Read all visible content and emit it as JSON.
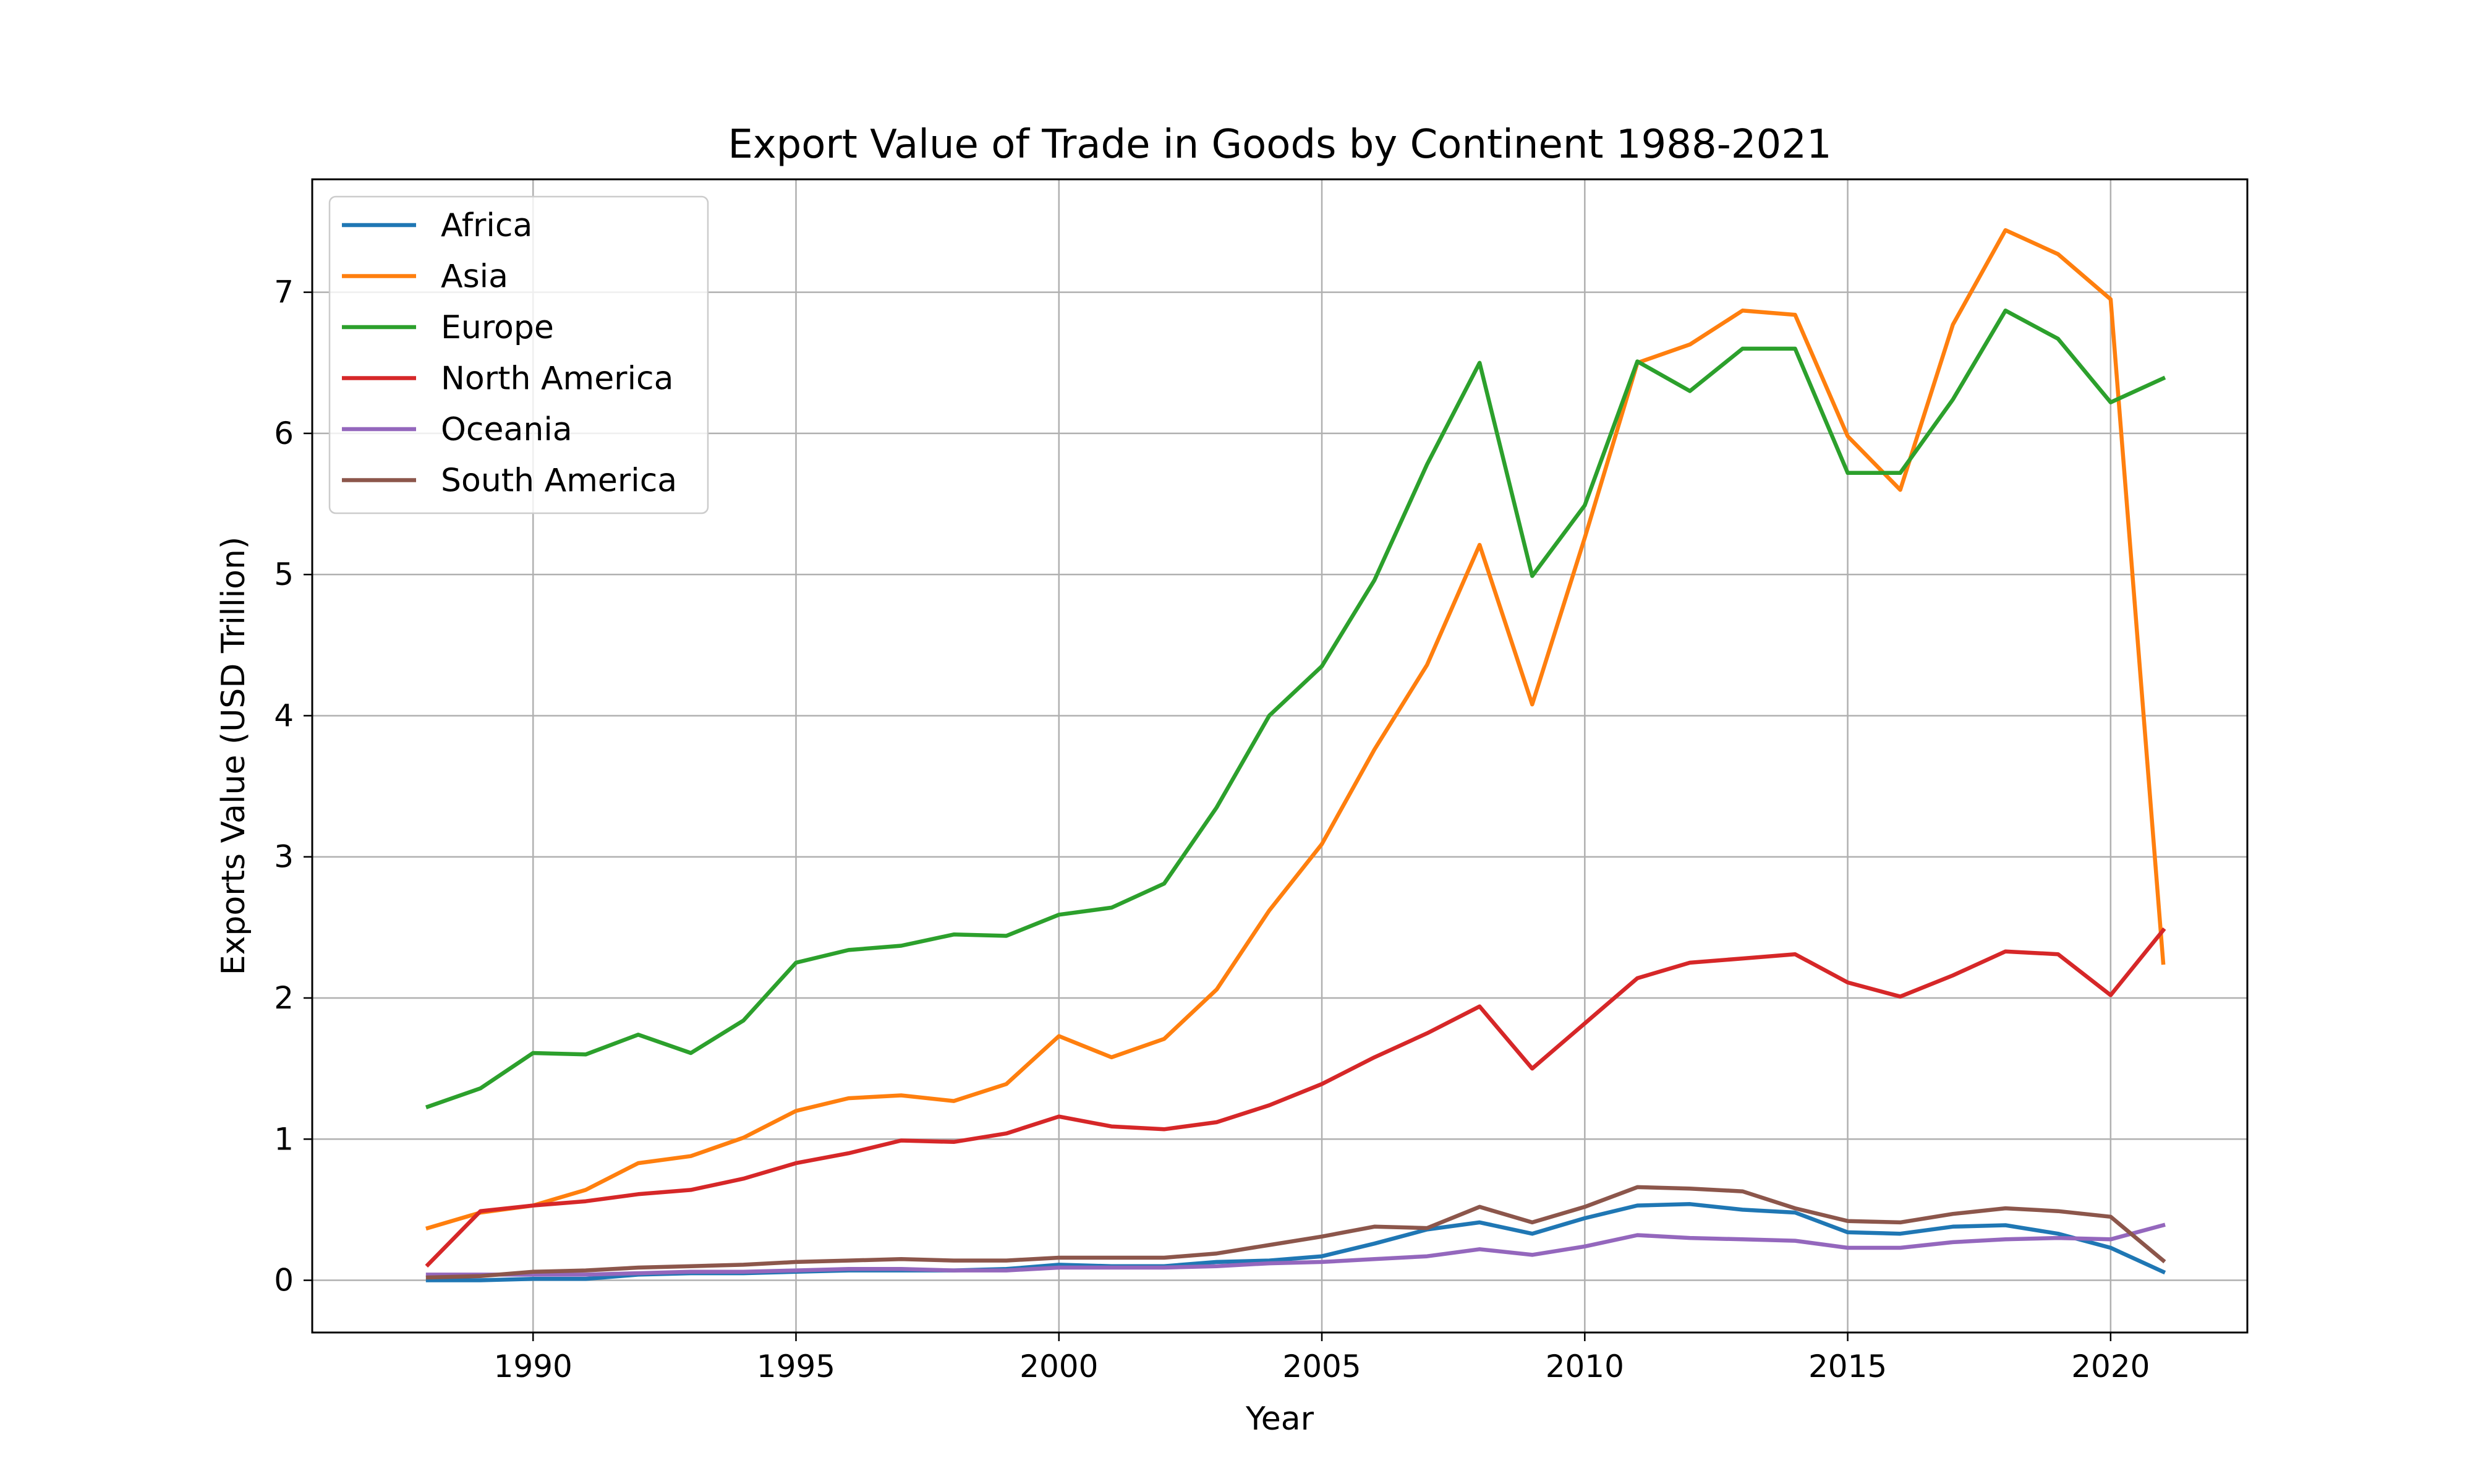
{
  "chart_data": {
    "type": "line",
    "title": "Export Value of Trade in Goods by Continent 1988-2021",
    "xlabel": "Year",
    "ylabel": "Exports Value (USD Trillion)",
    "xlim": [
      1985.8,
      2022.6
    ],
    "ylim": [
      -0.37,
      7.8
    ],
    "grid": true,
    "legend_position": "top-left",
    "x_ticks": [
      1990,
      1995,
      2000,
      2005,
      2010,
      2015,
      2020
    ],
    "y_ticks": [
      0,
      1,
      2,
      3,
      4,
      5,
      6,
      7
    ],
    "x": [
      1988,
      1989,
      1990,
      1991,
      1992,
      1993,
      1994,
      1995,
      1996,
      1997,
      1998,
      1999,
      2000,
      2001,
      2002,
      2003,
      2004,
      2005,
      2006,
      2007,
      2008,
      2009,
      2010,
      2011,
      2012,
      2013,
      2014,
      2015,
      2016,
      2017,
      2018,
      2019,
      2020,
      2021
    ],
    "series": [
      {
        "name": "Africa",
        "color": "#1f77b4",
        "values": [
          0.0,
          0.0,
          0.01,
          0.01,
          0.04,
          0.05,
          0.05,
          0.06,
          0.07,
          0.07,
          0.07,
          0.08,
          0.11,
          0.1,
          0.1,
          0.13,
          0.14,
          0.17,
          0.26,
          0.36,
          0.41,
          0.33,
          0.44,
          0.53,
          0.54,
          0.5,
          0.48,
          0.34,
          0.33,
          0.38,
          0.39,
          0.33,
          0.23,
          0.06
        ]
      },
      {
        "name": "Asia",
        "color": "#ff7f0e",
        "values": [
          0.37,
          0.48,
          0.53,
          0.64,
          0.83,
          0.88,
          1.01,
          1.2,
          1.29,
          1.31,
          1.27,
          1.39,
          1.73,
          1.58,
          1.71,
          2.06,
          2.62,
          3.09,
          3.76,
          4.36,
          5.21,
          4.08,
          5.26,
          6.5,
          6.63,
          6.87,
          6.84,
          5.98,
          5.6,
          6.77,
          7.44,
          7.27,
          6.95,
          2.25
        ]
      },
      {
        "name": "Europe",
        "color": "#2ca02c",
        "values": [
          1.23,
          1.36,
          1.61,
          1.6,
          1.74,
          1.61,
          1.84,
          2.25,
          2.34,
          2.37,
          2.45,
          2.44,
          2.59,
          2.64,
          2.81,
          3.35,
          4.0,
          4.35,
          4.96,
          5.78,
          6.5,
          4.99,
          5.49,
          6.51,
          6.3,
          6.6,
          6.6,
          5.72,
          5.72,
          6.24,
          6.87,
          6.67,
          6.22,
          6.39
        ]
      },
      {
        "name": "North America",
        "color": "#d62728",
        "values": [
          0.11,
          0.49,
          0.53,
          0.56,
          0.61,
          0.64,
          0.72,
          0.83,
          0.9,
          0.99,
          0.98,
          1.04,
          1.16,
          1.09,
          1.07,
          1.12,
          1.24,
          1.39,
          1.58,
          1.75,
          1.94,
          1.5,
          1.82,
          2.14,
          2.25,
          2.28,
          2.31,
          2.11,
          2.01,
          2.16,
          2.33,
          2.31,
          2.02,
          2.48
        ]
      },
      {
        "name": "Oceania",
        "color": "#9467bd",
        "values": [
          0.04,
          0.04,
          0.04,
          0.04,
          0.05,
          0.06,
          0.06,
          0.07,
          0.08,
          0.08,
          0.07,
          0.07,
          0.09,
          0.09,
          0.09,
          0.1,
          0.12,
          0.13,
          0.15,
          0.17,
          0.22,
          0.18,
          0.24,
          0.32,
          0.3,
          0.29,
          0.28,
          0.23,
          0.23,
          0.27,
          0.29,
          0.3,
          0.29,
          0.39
        ]
      },
      {
        "name": "South America",
        "color": "#8c564b",
        "values": [
          0.02,
          0.03,
          0.06,
          0.07,
          0.09,
          0.1,
          0.11,
          0.13,
          0.14,
          0.15,
          0.14,
          0.14,
          0.16,
          0.16,
          0.16,
          0.19,
          0.25,
          0.31,
          0.38,
          0.37,
          0.52,
          0.41,
          0.52,
          0.66,
          0.65,
          0.63,
          0.51,
          0.42,
          0.41,
          0.47,
          0.51,
          0.49,
          0.45,
          0.14
        ]
      }
    ]
  }
}
